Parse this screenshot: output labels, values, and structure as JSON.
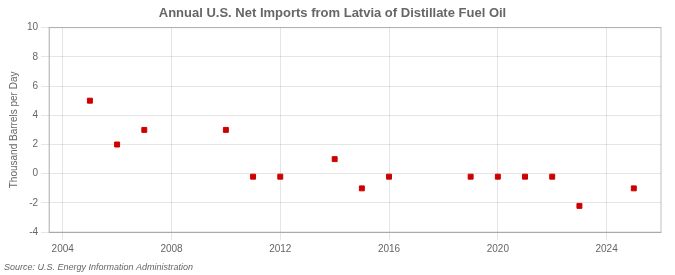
{
  "chart_data": {
    "type": "scatter",
    "title": "Annual U.S. Net Imports from Latvia of Distillate Fuel Oil",
    "ylabel": "Thousand Barrels per Day",
    "annotation": "Source: U.S. Energy Information Administration",
    "x": [
      2005,
      2006,
      2007,
      2010,
      2011,
      2012,
      2014,
      2015,
      2016,
      2019,
      2020,
      2021,
      2022,
      2023,
      2025
    ],
    "values": [
      5,
      2,
      3,
      3,
      -0.2,
      -0.2,
      1,
      -1,
      -0.2,
      -0.2,
      -0.2,
      -0.2,
      -0.2,
      -2.2,
      -1
    ],
    "color": "#cc0000",
    "marker": "square",
    "xlim": [
      2003.5,
      2026
    ],
    "ylim": [
      -4,
      10
    ],
    "xticks": [
      2004,
      2008,
      2012,
      2016,
      2020,
      2024
    ],
    "yticks": [
      -4,
      -2,
      0,
      2,
      4,
      6,
      8,
      10
    ],
    "grid": true
  }
}
